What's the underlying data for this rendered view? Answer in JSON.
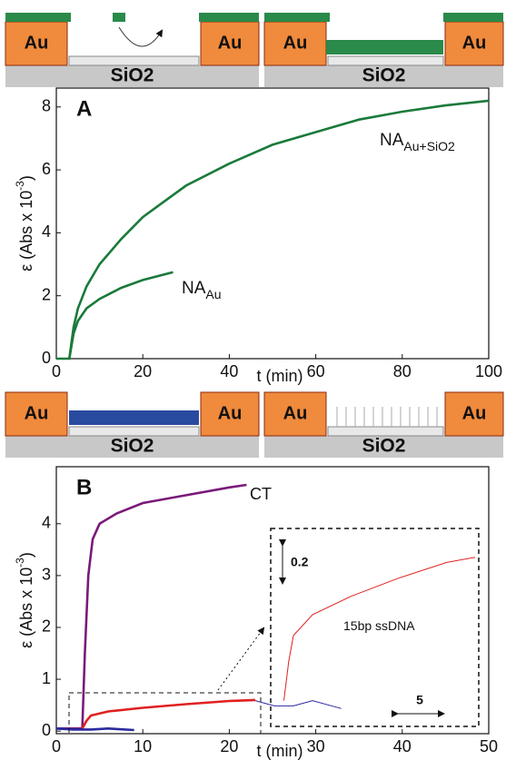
{
  "schematics": [
    {
      "labels": [
        "Au",
        "Au",
        "SiO2"
      ]
    },
    {
      "labels": [
        "Au",
        "Au",
        "SiO2"
      ]
    },
    {
      "labels": [
        "Au",
        "Au",
        "SiO2"
      ]
    },
    {
      "labels": [
        "Au",
        "Au",
        "SiO2"
      ]
    }
  ],
  "chart_data": [
    {
      "type": "line",
      "panel": "A",
      "xlabel": "t (min)",
      "ylabel": "ε (Abs x 10",
      "ylabel_sup": "-3",
      "ylabel_end": ")",
      "xlim": [
        0,
        100
      ],
      "ylim": [
        0,
        8.6
      ],
      "xticks": [
        0,
        20,
        40,
        60,
        80,
        100
      ],
      "yticks": [
        0,
        2,
        4,
        6,
        8
      ],
      "grid": false,
      "series": [
        {
          "name": "NA",
          "subscript": "Au+SiO2",
          "color": "#1a7a3a",
          "x": [
            0,
            3,
            4,
            5,
            7,
            10,
            15,
            20,
            25,
            30,
            40,
            50,
            60,
            70,
            80,
            90,
            100
          ],
          "values": [
            0,
            0,
            1.0,
            1.6,
            2.3,
            3.0,
            3.8,
            4.5,
            5.0,
            5.5,
            6.2,
            6.8,
            7.2,
            7.6,
            7.85,
            8.05,
            8.2
          ]
        },
        {
          "name": "NA",
          "subscript": "Au",
          "color": "#1a7a3a",
          "x": [
            3,
            4,
            5,
            7,
            10,
            15,
            20,
            27
          ],
          "values": [
            0,
            0.8,
            1.2,
            1.6,
            1.9,
            2.25,
            2.5,
            2.75
          ]
        }
      ]
    },
    {
      "type": "line",
      "panel": "B",
      "xlabel": "t (min)",
      "ylabel": "ε (Abs x 10",
      "ylabel_sup": "-3",
      "ylabel_end": ")",
      "xlim": [
        0,
        50
      ],
      "ylim": [
        -0.05,
        5.1
      ],
      "xticks": [
        0,
        10,
        20,
        30,
        40,
        50
      ],
      "yticks": [
        0,
        1,
        2,
        3,
        4
      ],
      "grid": false,
      "series": [
        {
          "name": "CT",
          "color": "#7a1a7a",
          "x": [
            0,
            3,
            3.3,
            3.7,
            4.2,
            5,
            7,
            10,
            15,
            20,
            22
          ],
          "values": [
            0.05,
            0.05,
            1.5,
            3.0,
            3.7,
            4.0,
            4.2,
            4.4,
            4.55,
            4.7,
            4.75
          ]
        },
        {
          "name": "15bp ssDNA",
          "color": "#e02020",
          "x": [
            3,
            3.5,
            4,
            6,
            10,
            15,
            20,
            23
          ],
          "values": [
            0.05,
            0.2,
            0.3,
            0.38,
            0.45,
            0.52,
            0.58,
            0.6
          ]
        },
        {
          "color": "#2a2aa0",
          "x": [
            0,
            2,
            4,
            6,
            9
          ],
          "values": [
            0.05,
            0.03,
            0.03,
            0.05,
            0.02
          ]
        }
      ],
      "inset": {
        "scale_y": "0.2",
        "scale_x": "5"
      }
    }
  ]
}
